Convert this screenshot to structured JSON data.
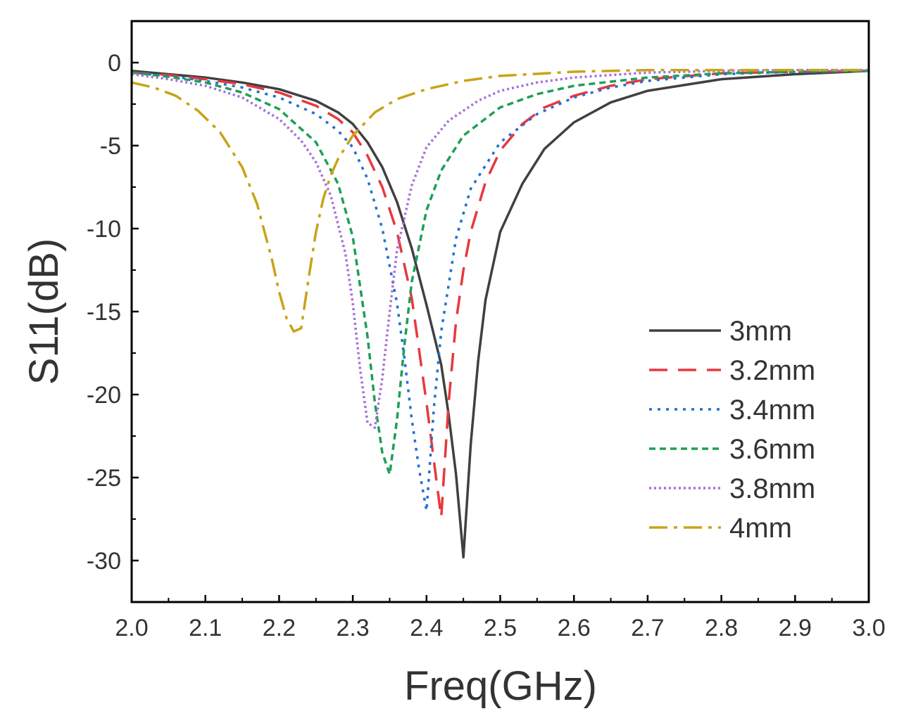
{
  "chart_data": {
    "type": "line",
    "title": "",
    "xlabel": "Freq(GHz)",
    "ylabel": "S11(dB)",
    "xlim": [
      2.0,
      3.0
    ],
    "ylim": [
      -32.5,
      2.5
    ],
    "xticks": [
      2.0,
      2.1,
      2.2,
      2.3,
      2.4,
      2.5,
      2.6,
      2.7,
      2.8,
      2.9,
      3.0
    ],
    "xtick_labels": [
      "2.0",
      "2.1",
      "2.2",
      "2.3",
      "2.4",
      "2.5",
      "2.6",
      "2.7",
      "2.8",
      "2.9",
      "3.0"
    ],
    "yticks": [
      0,
      -5,
      -10,
      -15,
      -20,
      -25,
      -30
    ],
    "ytick_labels": [
      "0",
      "-5",
      "-10",
      "-15",
      "-20",
      "-25",
      "-30"
    ],
    "grid": false,
    "legend_position": "right",
    "series": [
      {
        "name": "3mm",
        "color": "#404040",
        "dash": "solid",
        "x": [
          2.0,
          2.05,
          2.1,
          2.15,
          2.2,
          2.25,
          2.28,
          2.3,
          2.32,
          2.34,
          2.36,
          2.38,
          2.4,
          2.42,
          2.43,
          2.44,
          2.45,
          2.46,
          2.47,
          2.48,
          2.5,
          2.53,
          2.56,
          2.6,
          2.65,
          2.7,
          2.8,
          2.9,
          3.0
        ],
        "y": [
          -0.5,
          -0.7,
          -0.9,
          -1.2,
          -1.6,
          -2.3,
          -3.0,
          -3.7,
          -4.8,
          -6.3,
          -8.4,
          -11.2,
          -14.6,
          -18.2,
          -21.2,
          -24.8,
          -29.8,
          -23.0,
          -18.0,
          -14.3,
          -10.2,
          -7.3,
          -5.2,
          -3.6,
          -2.4,
          -1.7,
          -1.0,
          -0.7,
          -0.5
        ]
      },
      {
        "name": "3.2mm",
        "color": "#E8383D",
        "dash": "long",
        "x": [
          2.0,
          2.05,
          2.1,
          2.15,
          2.2,
          2.25,
          2.28,
          2.3,
          2.32,
          2.34,
          2.36,
          2.38,
          2.4,
          2.41,
          2.42,
          2.43,
          2.44,
          2.45,
          2.46,
          2.48,
          2.5,
          2.53,
          2.56,
          2.6,
          2.65,
          2.7,
          2.8,
          2.9,
          3.0
        ],
        "y": [
          -0.6,
          -0.75,
          -1.0,
          -1.3,
          -1.8,
          -2.6,
          -3.4,
          -4.2,
          -5.6,
          -7.5,
          -10.2,
          -14.2,
          -20.5,
          -24.0,
          -27.4,
          -20.5,
          -15.6,
          -12.5,
          -10.2,
          -7.2,
          -5.3,
          -3.7,
          -2.7,
          -2.0,
          -1.4,
          -1.0,
          -0.65,
          -0.55,
          -0.5
        ]
      },
      {
        "name": "3.4mm",
        "color": "#1F6FD6",
        "dash": "dotted",
        "x": [
          2.0,
          2.05,
          2.1,
          2.15,
          2.2,
          2.25,
          2.28,
          2.3,
          2.32,
          2.34,
          2.36,
          2.37,
          2.38,
          2.39,
          2.4,
          2.41,
          2.42,
          2.44,
          2.46,
          2.5,
          2.55,
          2.6,
          2.65,
          2.7,
          2.8,
          2.9,
          3.0
        ],
        "y": [
          -0.6,
          -0.8,
          -1.1,
          -1.5,
          -2.1,
          -3.1,
          -4.1,
          -5.1,
          -7.0,
          -10.0,
          -14.5,
          -17.8,
          -21.5,
          -24.5,
          -27.0,
          -20.8,
          -16.2,
          -10.6,
          -7.6,
          -4.8,
          -3.1,
          -2.1,
          -1.5,
          -1.1,
          -0.7,
          -0.55,
          -0.5
        ]
      },
      {
        "name": "3.6mm",
        "color": "#1E9F58",
        "dash": "short",
        "x": [
          2.0,
          2.05,
          2.1,
          2.15,
          2.2,
          2.25,
          2.28,
          2.3,
          2.32,
          2.33,
          2.34,
          2.35,
          2.36,
          2.37,
          2.38,
          2.4,
          2.42,
          2.45,
          2.5,
          2.55,
          2.6,
          2.7,
          2.8,
          2.9,
          3.0
        ],
        "y": [
          -0.6,
          -0.85,
          -1.2,
          -1.8,
          -2.8,
          -4.8,
          -7.3,
          -10.5,
          -16.5,
          -20.5,
          -23.5,
          -24.8,
          -21.5,
          -17.0,
          -13.2,
          -8.9,
          -6.5,
          -4.4,
          -2.7,
          -1.9,
          -1.4,
          -0.9,
          -0.65,
          -0.55,
          -0.5
        ]
      },
      {
        "name": "3.8mm",
        "color": "#A66ED9",
        "dash": "dense",
        "x": [
          2.0,
          2.05,
          2.1,
          2.15,
          2.2,
          2.23,
          2.25,
          2.27,
          2.29,
          2.3,
          2.31,
          2.32,
          2.33,
          2.34,
          2.35,
          2.36,
          2.38,
          2.4,
          2.43,
          2.47,
          2.5,
          2.55,
          2.6,
          2.7,
          2.8,
          2.9,
          3.0
        ],
        "y": [
          -0.7,
          -1.0,
          -1.4,
          -2.1,
          -3.4,
          -4.7,
          -6.0,
          -8.0,
          -11.5,
          -14.5,
          -18.5,
          -21.7,
          -22.0,
          -19.0,
          -15.0,
          -11.3,
          -7.4,
          -5.1,
          -3.5,
          -2.3,
          -1.7,
          -1.2,
          -0.9,
          -0.6,
          -0.5,
          -0.45,
          -0.45
        ]
      },
      {
        "name": "4mm",
        "color": "#C9A316",
        "dash": "dashdot",
        "x": [
          2.0,
          2.03,
          2.06,
          2.09,
          2.12,
          2.15,
          2.17,
          2.19,
          2.2,
          2.21,
          2.22,
          2.23,
          2.24,
          2.25,
          2.26,
          2.27,
          2.28,
          2.3,
          2.33,
          2.36,
          2.4,
          2.45,
          2.5,
          2.6,
          2.7,
          2.8,
          2.9,
          3.0
        ],
        "y": [
          -1.2,
          -1.5,
          -2.0,
          -2.9,
          -4.2,
          -6.3,
          -8.5,
          -11.8,
          -13.8,
          -15.4,
          -16.2,
          -16.0,
          -13.0,
          -10.2,
          -8.2,
          -6.8,
          -5.8,
          -4.4,
          -3.0,
          -2.2,
          -1.6,
          -1.1,
          -0.8,
          -0.55,
          -0.45,
          -0.45,
          -0.45,
          -0.45
        ]
      }
    ]
  }
}
